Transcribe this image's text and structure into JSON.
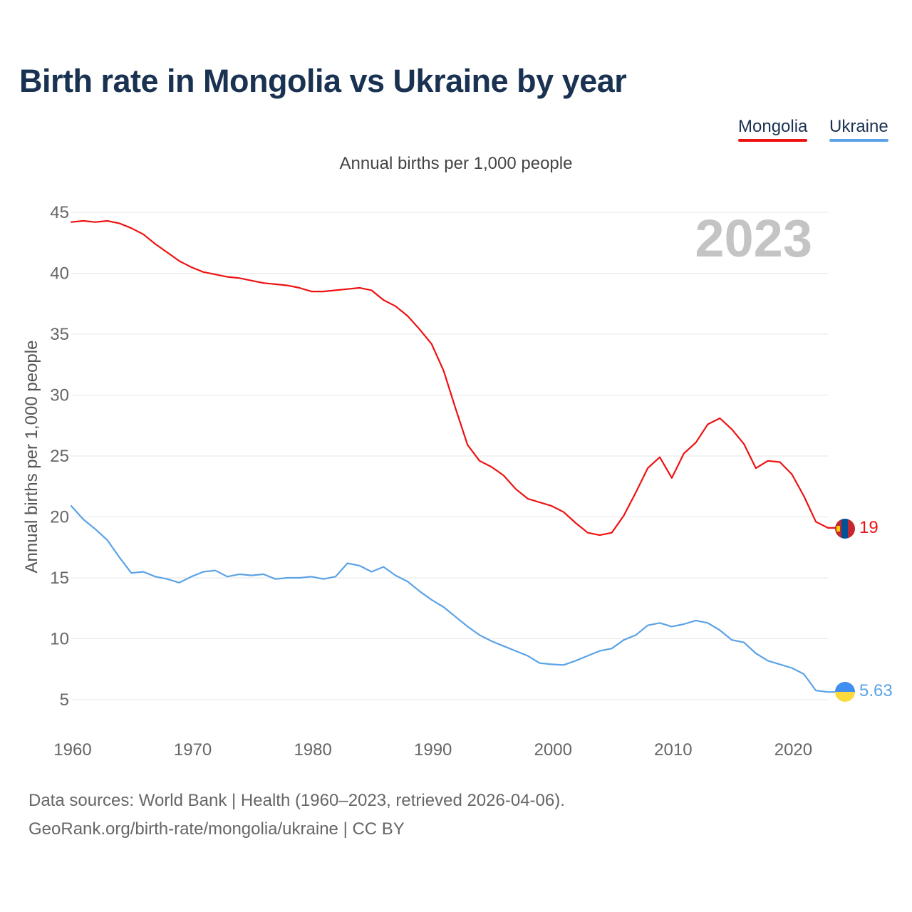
{
  "title": "Birth rate in Mongolia vs Ukraine by year",
  "subtitle": "Annual births per 1,000 people",
  "legend": [
    {
      "name": "Mongolia",
      "color": "#ee1111"
    },
    {
      "name": "Ukraine",
      "color": "#5ba3e6"
    }
  ],
  "year_watermark": "2023",
  "footer": {
    "line1": "Data sources: World Bank | Health (1960–2023, retrieved 2026-04-06).",
    "line2": "GeoRank.org/birth-rate/mongolia/ukraine | CC BY"
  },
  "chart_data": {
    "type": "line",
    "title": "Birth rate in Mongolia vs Ukraine by year",
    "xlabel": "",
    "ylabel": "Annual births per 1,000 people",
    "xlim": [
      1960,
      2023
    ],
    "ylim": [
      5,
      45
    ],
    "yticks": [
      "5",
      "10",
      "15",
      "20",
      "25",
      "30",
      "35",
      "40",
      "45"
    ],
    "xticks": [
      "1960",
      "1970",
      "1980",
      "1990",
      "2000",
      "2010",
      "2020"
    ],
    "grid": true,
    "legend_position": "top-right",
    "x": [
      1960,
      1961,
      1962,
      1963,
      1964,
      1965,
      1966,
      1967,
      1968,
      1969,
      1970,
      1971,
      1972,
      1973,
      1974,
      1975,
      1976,
      1977,
      1978,
      1979,
      1980,
      1981,
      1982,
      1983,
      1984,
      1985,
      1986,
      1987,
      1988,
      1989,
      1990,
      1991,
      1992,
      1993,
      1994,
      1995,
      1996,
      1997,
      1998,
      1999,
      2000,
      2001,
      2002,
      2003,
      2004,
      2005,
      2006,
      2007,
      2008,
      2009,
      2010,
      2011,
      2012,
      2013,
      2014,
      2015,
      2016,
      2017,
      2018,
      2019,
      2020,
      2021,
      2022,
      2023
    ],
    "series": [
      {
        "name": "Mongolia",
        "color": "#ee1111",
        "end_label": "19",
        "values": [
          44.2,
          44.3,
          44.2,
          44.3,
          44.1,
          43.7,
          43.2,
          42.4,
          41.7,
          41.0,
          40.5,
          40.1,
          39.9,
          39.7,
          39.6,
          39.4,
          39.2,
          39.1,
          39.0,
          38.8,
          38.5,
          38.5,
          38.6,
          38.7,
          38.8,
          38.6,
          37.8,
          37.3,
          36.5,
          35.4,
          34.2,
          32.0,
          28.9,
          25.9,
          24.6,
          24.1,
          23.4,
          22.3,
          21.5,
          21.2,
          20.9,
          20.4,
          19.5,
          18.7,
          18.5,
          18.7,
          20.1,
          22.0,
          24.0,
          24.9,
          23.2,
          25.2,
          26.1,
          27.6,
          28.1,
          27.2,
          26.0,
          24.0,
          24.6,
          24.5,
          23.5,
          21.7,
          19.6,
          19.1
        ]
      },
      {
        "name": "Ukraine",
        "color": "#5ba3e6",
        "end_label": "5.63",
        "values": [
          20.9,
          19.8,
          19.0,
          18.1,
          16.7,
          15.4,
          15.5,
          15.1,
          14.9,
          14.6,
          15.1,
          15.5,
          15.6,
          15.1,
          15.3,
          15.2,
          15.3,
          14.9,
          15.0,
          15.0,
          15.1,
          14.9,
          15.1,
          16.2,
          16.0,
          15.5,
          15.9,
          15.2,
          14.7,
          13.9,
          13.2,
          12.6,
          11.8,
          11.0,
          10.3,
          9.8,
          9.4,
          9.0,
          8.6,
          8.0,
          7.9,
          7.85,
          8.2,
          8.6,
          9.0,
          9.2,
          9.9,
          10.3,
          11.1,
          11.3,
          11.0,
          11.2,
          11.5,
          11.3,
          10.7,
          9.9,
          9.7,
          8.8,
          8.2,
          7.9,
          7.6,
          7.1,
          5.75,
          5.63
        ]
      }
    ]
  }
}
